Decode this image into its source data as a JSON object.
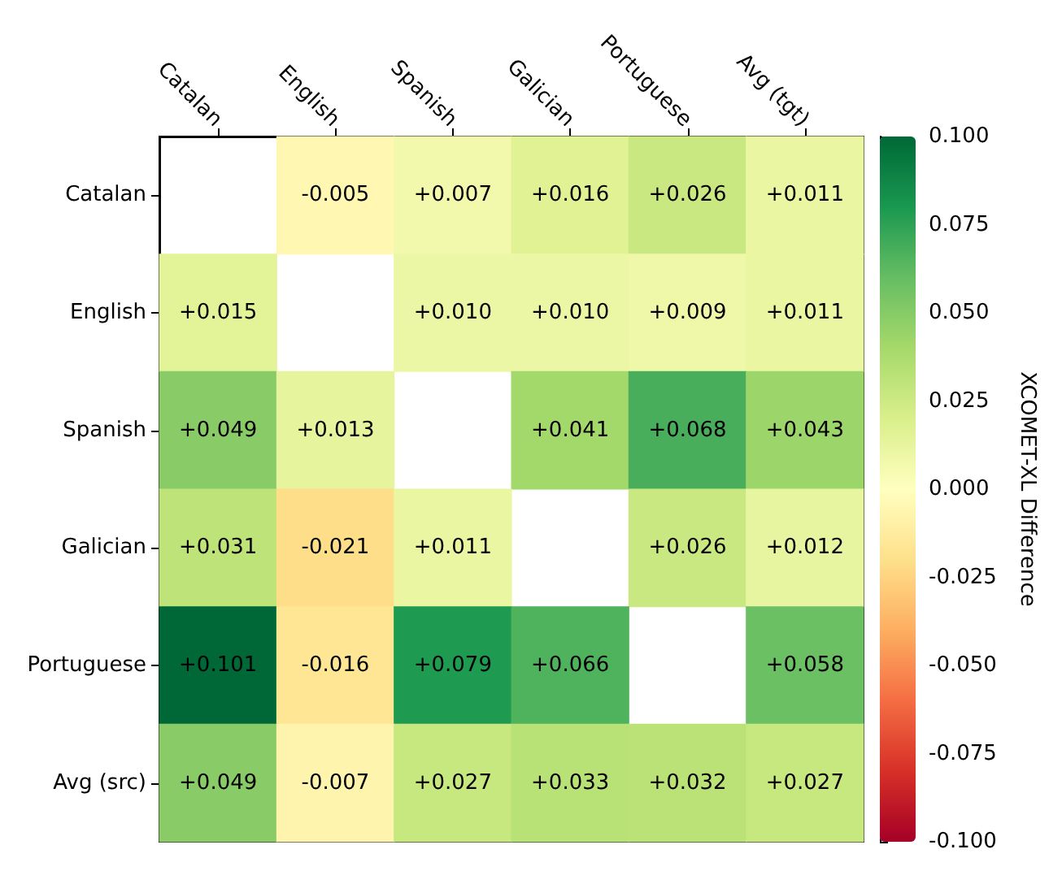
{
  "chart_data": {
    "type": "heatmap",
    "clabel": "XCOMET-XL Difference",
    "categories": [
      "Catalan",
      "English",
      "Spanish",
      "Galician",
      "Portuguese",
      "Avg (tgt)"
    ],
    "y_categories": [
      "Catalan",
      "English",
      "Spanish",
      "Galician",
      "Portuguese",
      "Avg (src)"
    ],
    "cells": [
      [
        null,
        -0.005,
        0.007,
        0.016,
        0.026,
        0.011
      ],
      [
        0.015,
        null,
        0.01,
        0.01,
        0.009,
        0.011
      ],
      [
        0.049,
        0.013,
        null,
        0.041,
        0.068,
        0.043
      ],
      [
        0.031,
        -0.021,
        0.011,
        null,
        0.026,
        0.012
      ],
      [
        0.101,
        -0.016,
        0.079,
        0.066,
        null,
        0.058
      ],
      [
        0.049,
        -0.007,
        0.027,
        0.033,
        0.032,
        0.027
      ]
    ],
    "cell_labels": [
      [
        null,
        "-0.005",
        "+0.007",
        "+0.016",
        "+0.026",
        "+0.011"
      ],
      [
        "+0.015",
        null,
        "+0.010",
        "+0.010",
        "+0.009",
        "+0.011"
      ],
      [
        "+0.049",
        "+0.013",
        null,
        "+0.041",
        "+0.068",
        "+0.043"
      ],
      [
        "+0.031",
        "-0.021",
        "+0.011",
        null,
        "+0.026",
        "+0.012"
      ],
      [
        "+0.101",
        "-0.016",
        "+0.079",
        "+0.066",
        null,
        "+0.058"
      ],
      [
        "+0.049",
        "-0.007",
        "+0.027",
        "+0.033",
        "+0.032",
        "+0.027"
      ]
    ],
    "clim": [
      -0.1,
      0.1
    ],
    "cticks": [
      {
        "value": -0.1,
        "label": "-0.100"
      },
      {
        "value": -0.075,
        "label": "-0.075"
      },
      {
        "value": -0.05,
        "label": "-0.050"
      },
      {
        "value": -0.025,
        "label": "-0.025"
      },
      {
        "value": 0,
        "label": "0.000"
      },
      {
        "value": 0.025,
        "label": "0.025"
      },
      {
        "value": 0.05,
        "label": "0.050"
      },
      {
        "value": 0.075,
        "label": "0.075"
      },
      {
        "value": 0.1,
        "label": "0.100"
      }
    ]
  }
}
